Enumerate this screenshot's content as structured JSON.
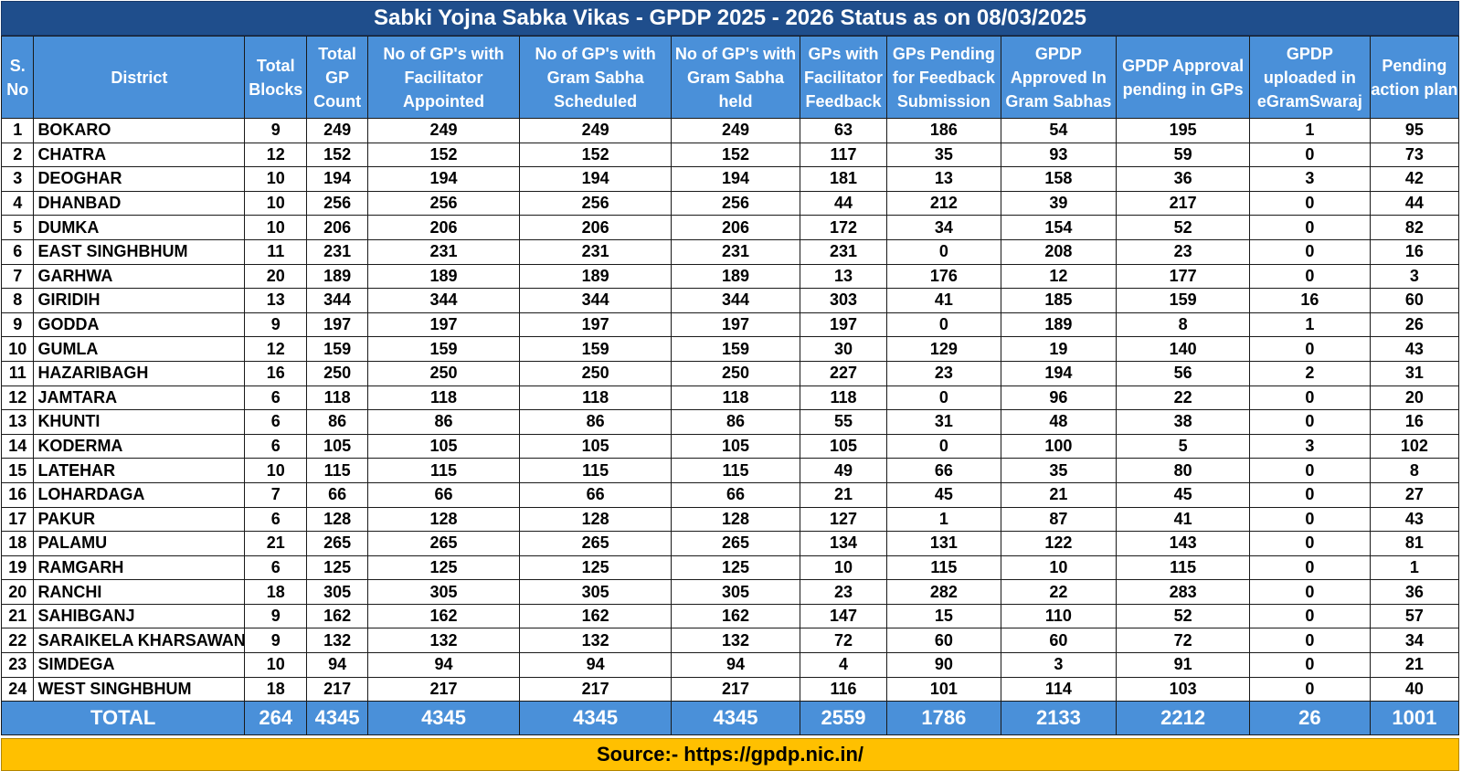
{
  "title": "Sabki Yojna Sabka Vikas - GPDP 2025 - 2026 Status as on 08/03/2025",
  "columns": [
    "S. No",
    "District",
    "Total Blocks",
    "Total GP Count",
    "No of GP's with Facilitator Appointed",
    "No of GP's with Gram Sabha Scheduled",
    "No of GP's with Gram Sabha held",
    "GPs with Facilitator Feedback",
    "GPs Pending for Feedback Submission",
    "GPDP Approved In Gram Sabhas",
    "GPDP Approval pending in GPs",
    "GPDP uploaded in eGramSwaraj",
    "Pending action plan"
  ],
  "rows": [
    [
      "1",
      "BOKARO",
      "9",
      "249",
      "249",
      "249",
      "249",
      "63",
      "186",
      "54",
      "195",
      "1",
      "95"
    ],
    [
      "2",
      "CHATRA",
      "12",
      "152",
      "152",
      "152",
      "152",
      "117",
      "35",
      "93",
      "59",
      "0",
      "73"
    ],
    [
      "3",
      "DEOGHAR",
      "10",
      "194",
      "194",
      "194",
      "194",
      "181",
      "13",
      "158",
      "36",
      "3",
      "42"
    ],
    [
      "4",
      "DHANBAD",
      "10",
      "256",
      "256",
      "256",
      "256",
      "44",
      "212",
      "39",
      "217",
      "0",
      "44"
    ],
    [
      "5",
      "DUMKA",
      "10",
      "206",
      "206",
      "206",
      "206",
      "172",
      "34",
      "154",
      "52",
      "0",
      "82"
    ],
    [
      "6",
      "EAST SINGHBHUM",
      "11",
      "231",
      "231",
      "231",
      "231",
      "231",
      "0",
      "208",
      "23",
      "0",
      "16"
    ],
    [
      "7",
      "GARHWA",
      "20",
      "189",
      "189",
      "189",
      "189",
      "13",
      "176",
      "12",
      "177",
      "0",
      "3"
    ],
    [
      "8",
      "GIRIDIH",
      "13",
      "344",
      "344",
      "344",
      "344",
      "303",
      "41",
      "185",
      "159",
      "16",
      "60"
    ],
    [
      "9",
      "GODDA",
      "9",
      "197",
      "197",
      "197",
      "197",
      "197",
      "0",
      "189",
      "8",
      "1",
      "26"
    ],
    [
      "10",
      "GUMLA",
      "12",
      "159",
      "159",
      "159",
      "159",
      "30",
      "129",
      "19",
      "140",
      "0",
      "43"
    ],
    [
      "11",
      "HAZARIBAGH",
      "16",
      "250",
      "250",
      "250",
      "250",
      "227",
      "23",
      "194",
      "56",
      "2",
      "31"
    ],
    [
      "12",
      "JAMTARA",
      "6",
      "118",
      "118",
      "118",
      "118",
      "118",
      "0",
      "96",
      "22",
      "0",
      "20"
    ],
    [
      "13",
      "KHUNTI",
      "6",
      "86",
      "86",
      "86",
      "86",
      "55",
      "31",
      "48",
      "38",
      "0",
      "16"
    ],
    [
      "14",
      "KODERMA",
      "6",
      "105",
      "105",
      "105",
      "105",
      "105",
      "0",
      "100",
      "5",
      "3",
      "102"
    ],
    [
      "15",
      "LATEHAR",
      "10",
      "115",
      "115",
      "115",
      "115",
      "49",
      "66",
      "35",
      "80",
      "0",
      "8"
    ],
    [
      "16",
      "LOHARDAGA",
      "7",
      "66",
      "66",
      "66",
      "66",
      "21",
      "45",
      "21",
      "45",
      "0",
      "27"
    ],
    [
      "17",
      "PAKUR",
      "6",
      "128",
      "128",
      "128",
      "128",
      "127",
      "1",
      "87",
      "41",
      "0",
      "43"
    ],
    [
      "18",
      "PALAMU",
      "21",
      "265",
      "265",
      "265",
      "265",
      "134",
      "131",
      "122",
      "143",
      "0",
      "81"
    ],
    [
      "19",
      "RAMGARH",
      "6",
      "125",
      "125",
      "125",
      "125",
      "10",
      "115",
      "10",
      "115",
      "0",
      "1"
    ],
    [
      "20",
      "RANCHI",
      "18",
      "305",
      "305",
      "305",
      "305",
      "23",
      "282",
      "22",
      "283",
      "0",
      "36"
    ],
    [
      "21",
      "SAHIBGANJ",
      "9",
      "162",
      "162",
      "162",
      "162",
      "147",
      "15",
      "110",
      "52",
      "0",
      "57"
    ],
    [
      "22",
      "SARAIKELA KHARSAWAN",
      "9",
      "132",
      "132",
      "132",
      "132",
      "72",
      "60",
      "60",
      "72",
      "0",
      "34"
    ],
    [
      "23",
      "SIMDEGA",
      "10",
      "94",
      "94",
      "94",
      "94",
      "4",
      "90",
      "3",
      "91",
      "0",
      "21"
    ],
    [
      "24",
      "WEST SINGHBHUM",
      "18",
      "217",
      "217",
      "217",
      "217",
      "116",
      "101",
      "114",
      "103",
      "0",
      "40"
    ]
  ],
  "total": {
    "label": "TOTAL",
    "values": [
      "264",
      "4345",
      "4345",
      "4345",
      "4345",
      "2559",
      "1786",
      "2133",
      "2212",
      "26",
      "1001"
    ]
  },
  "source": "Source:- https://gpdp.nic.in/",
  "colors": {
    "title_background": "#1f4e8c",
    "header_background": "#4a90d9",
    "source_background": "#ffc000"
  }
}
